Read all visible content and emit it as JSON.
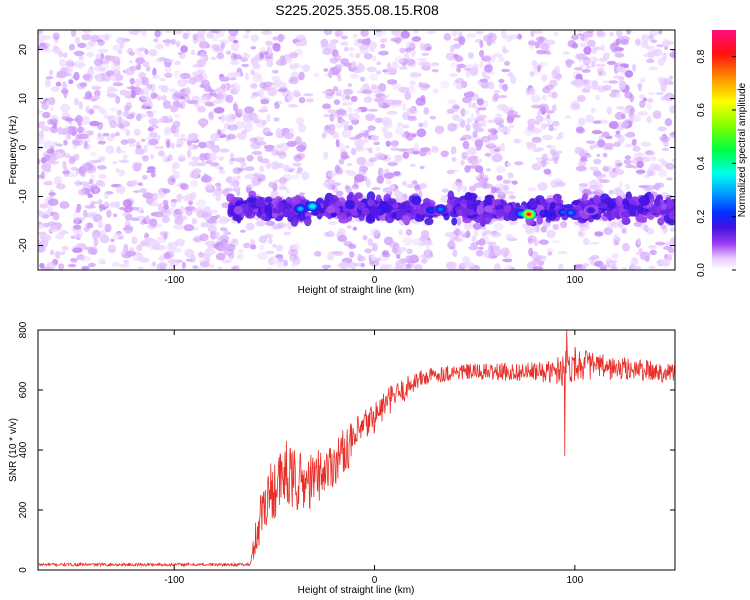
{
  "title": "S225.2025.355.08.15.R08",
  "chart_data": [
    {
      "type": "heatmap",
      "xlabel": "Height of straight line (km)",
      "ylabel": "Frequency (Hz)",
      "xlim": [
        -168,
        150
      ],
      "ylim": [
        -25,
        24
      ],
      "xticks": [
        -100,
        0,
        100
      ],
      "yticks": [
        -20,
        -10,
        0,
        10,
        20
      ],
      "colorbar": {
        "label": "Normalized spectral amplitude",
        "range": [
          0.0,
          0.9
        ],
        "ticks": [
          0.0,
          0.2,
          0.4,
          0.6,
          0.8
        ],
        "tick_labels": [
          "0.0",
          "0.2",
          "0.4",
          "0.6",
          "0.8"
        ],
        "colormap": "rainbow (white-violet-purple-blue-cyan-green-yellow-orange-red-magenta)"
      },
      "signal_band": {
        "frequency_center": -12.5,
        "frequency_halfwidth": 2.5,
        "x_start": -72,
        "x_end": 150,
        "typical_amplitude": 0.08
      },
      "background_noise_amplitude": 0.03,
      "gaps_no_data": [
        [
          -35,
          -25
        ],
        [
          28,
          38
        ],
        [
          70,
          77
        ],
        [
          93,
          100
        ]
      ],
      "peaks": [
        {
          "x": -37,
          "y": -12.5,
          "amplitude": 0.35
        },
        {
          "x": -31,
          "y": -12,
          "amplitude": 0.42
        },
        {
          "x": 28,
          "y": -12.8,
          "amplitude": 0.25
        },
        {
          "x": 33,
          "y": -12.6,
          "amplitude": 0.3
        },
        {
          "x": 73,
          "y": -13.5,
          "amplitude": 0.33
        },
        {
          "x": 77,
          "y": -13.6,
          "amplitude": 0.9
        },
        {
          "x": 94,
          "y": -13.2,
          "amplitude": 0.28
        },
        {
          "x": 98,
          "y": -13.3,
          "amplitude": 0.3
        },
        {
          "x": 108,
          "y": -12.8,
          "amplitude": 0.2
        }
      ]
    },
    {
      "type": "line",
      "xlabel": "Height of straight line (km)",
      "ylabel": "SNR (10 * v/v)",
      "xlim": [
        -168,
        150
      ],
      "ylim": [
        0,
        800
      ],
      "xticks": [
        -100,
        0,
        100
      ],
      "yticks": [
        0,
        200,
        400,
        600,
        800
      ],
      "series": [
        {
          "color": "#e8302a",
          "x": [
            -168,
            -140,
            -100,
            -80,
            -62,
            -58,
            -55,
            -50,
            -45,
            -40,
            -35,
            -30,
            -25,
            -20,
            -15,
            -10,
            -5,
            0,
            5,
            10,
            15,
            20,
            25,
            30,
            40,
            50,
            60,
            70,
            80,
            90,
            95,
            100,
            110,
            120,
            130,
            140,
            150
          ],
          "values": [
            18,
            18,
            18,
            18,
            18,
            150,
            230,
            280,
            300,
            300,
            290,
            300,
            330,
            360,
            400,
            430,
            480,
            510,
            550,
            580,
            600,
            630,
            640,
            650,
            660,
            660,
            660,
            660,
            660,
            660,
            680,
            690,
            680,
            670,
            670,
            660,
            660
          ],
          "noise_amplitude": [
            5,
            5,
            5,
            5,
            5,
            90,
            100,
            110,
            110,
            110,
            100,
            90,
            80,
            80,
            75,
            70,
            60,
            55,
            50,
            45,
            40,
            35,
            30,
            28,
            28,
            28,
            30,
            30,
            32,
            40,
            70,
            60,
            45,
            40,
            38,
            35,
            35
          ],
          "notable_dips": [
            {
              "x": 95,
              "y": 380
            }
          ],
          "notable_spikes": [
            {
              "x": 96,
              "y": 800
            },
            {
              "x": -44,
              "y": 430
            },
            {
              "x": -28,
              "y": 400
            }
          ]
        }
      ]
    }
  ],
  "colors": {
    "line": "#e8302a",
    "axes": "#000000",
    "background": "#ffffff"
  }
}
